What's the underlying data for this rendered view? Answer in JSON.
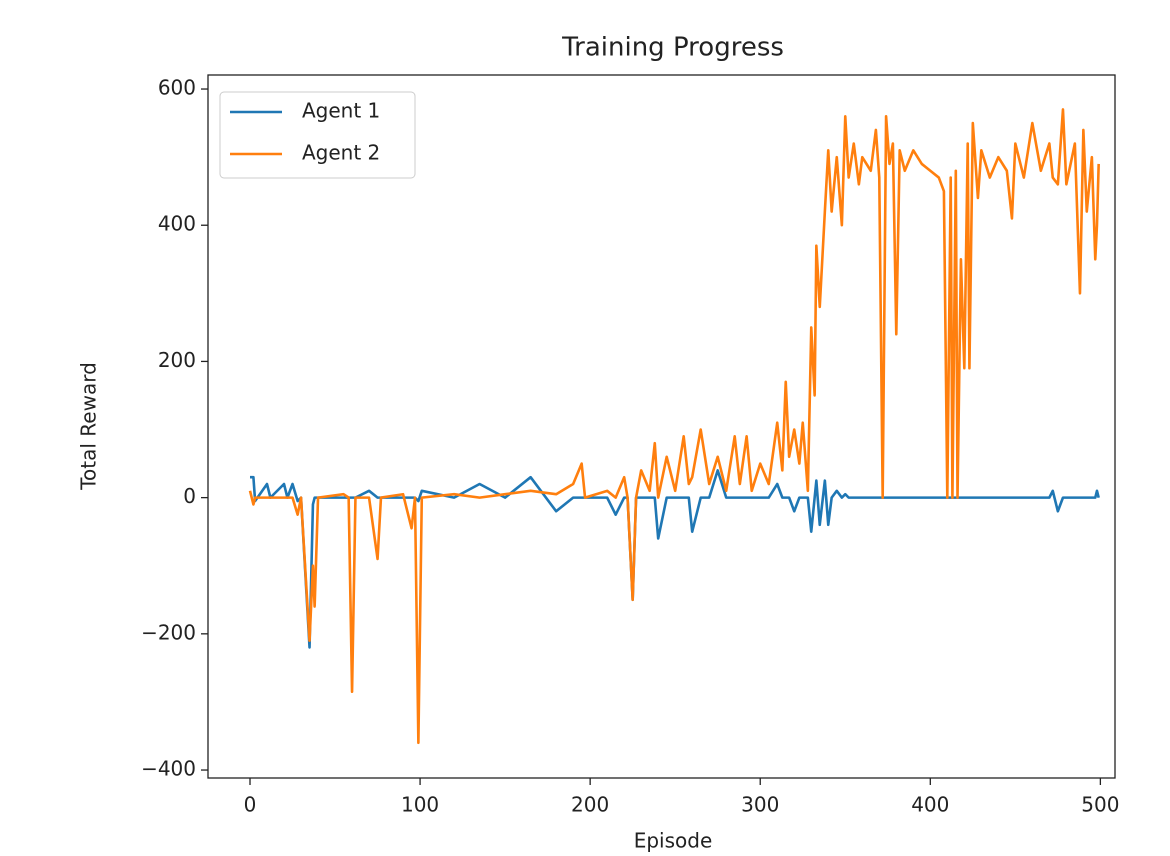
{
  "chart_data": {
    "type": "line",
    "title": "Training Progress",
    "xlabel": "Episode",
    "ylabel": "Total Reward",
    "x": [
      0,
      2,
      3,
      10,
      12,
      20,
      22,
      25,
      28,
      30,
      35,
      37,
      38,
      40,
      55,
      58,
      60,
      62,
      70,
      75,
      77,
      90,
      95,
      97,
      99,
      101,
      120,
      135,
      150,
      165,
      180,
      190,
      195,
      197,
      210,
      215,
      220,
      222,
      225,
      227,
      230,
      235,
      238,
      240,
      245,
      250,
      255,
      258,
      260,
      265,
      270,
      275,
      280,
      285,
      288,
      292,
      295,
      300,
      305,
      310,
      313,
      315,
      317,
      320,
      323,
      325,
      328,
      330,
      332,
      333,
      335,
      338,
      340,
      342,
      345,
      348,
      350,
      352,
      355,
      358,
      360,
      365,
      368,
      370,
      372,
      374,
      376,
      378,
      380,
      382,
      385,
      390,
      395,
      400,
      405,
      408,
      410,
      412,
      413,
      415,
      416,
      418,
      420,
      422,
      423,
      425,
      428,
      430,
      435,
      440,
      445,
      448,
      450,
      455,
      460,
      465,
      470,
      472,
      475,
      478,
      480,
      485,
      488,
      490,
      492,
      495,
      497,
      498,
      499
    ],
    "series": [
      {
        "name": "Agent 1",
        "color": "#1f77b4",
        "values": [
          30,
          30,
          -5,
          20,
          0,
          20,
          0,
          20,
          -5,
          0,
          -220,
          -10,
          0,
          0,
          0,
          0,
          0,
          0,
          10,
          0,
          0,
          0,
          0,
          0,
          -5,
          10,
          0,
          20,
          0,
          30,
          -20,
          0,
          0,
          0,
          0,
          -25,
          0,
          0,
          -150,
          0,
          0,
          0,
          0,
          -60,
          0,
          0,
          0,
          0,
          -50,
          0,
          0,
          40,
          0,
          0,
          0,
          0,
          0,
          0,
          0,
          20,
          0,
          0,
          0,
          -20,
          0,
          0,
          0,
          -50,
          0,
          25,
          -40,
          25,
          -40,
          0,
          10,
          0,
          5,
          0,
          0,
          0,
          0,
          0,
          0,
          0,
          0,
          0,
          0,
          0,
          0,
          0,
          0,
          0,
          0,
          0,
          0,
          0,
          0,
          0,
          0,
          0,
          0,
          0,
          0,
          0,
          0,
          0,
          0,
          0,
          0,
          0,
          0,
          0,
          0,
          0,
          0,
          0,
          0,
          10,
          -20,
          0,
          0,
          0,
          0,
          0,
          0,
          0,
          0,
          10,
          0
        ]
      },
      {
        "name": "Agent 2",
        "color": "#ff7f0e",
        "values": [
          10,
          -10,
          0,
          0,
          0,
          0,
          0,
          0,
          -25,
          0,
          -210,
          -100,
          -160,
          0,
          5,
          0,
          -285,
          0,
          0,
          -90,
          0,
          5,
          -45,
          0,
          -360,
          0,
          5,
          0,
          5,
          10,
          5,
          20,
          50,
          0,
          10,
          0,
          30,
          0,
          -150,
          0,
          40,
          10,
          80,
          0,
          60,
          10,
          90,
          20,
          30,
          100,
          20,
          60,
          10,
          90,
          20,
          90,
          10,
          50,
          20,
          110,
          40,
          170,
          60,
          100,
          50,
          110,
          10,
          250,
          150,
          370,
          280,
          420,
          510,
          420,
          500,
          400,
          560,
          470,
          520,
          460,
          500,
          480,
          540,
          470,
          0,
          560,
          490,
          520,
          240,
          510,
          480,
          510,
          490,
          480,
          470,
          450,
          0,
          470,
          0,
          480,
          0,
          350,
          190,
          520,
          190,
          550,
          440,
          510,
          470,
          500,
          480,
          410,
          520,
          470,
          550,
          480,
          520,
          470,
          460,
          570,
          460,
          520,
          300,
          540,
          420,
          500,
          350,
          400,
          490
        ]
      }
    ],
    "xlim": [
      -24.7,
      508.6
    ],
    "ylim": [
      -411.7,
      620.6
    ],
    "xticks": [
      0,
      100,
      200,
      300,
      400,
      500
    ],
    "yticks": [
      {
        "value": -400,
        "label": "−400"
      },
      {
        "value": -200,
        "label": "−200"
      },
      0,
      200,
      400,
      600
    ],
    "legend": "upper left"
  }
}
